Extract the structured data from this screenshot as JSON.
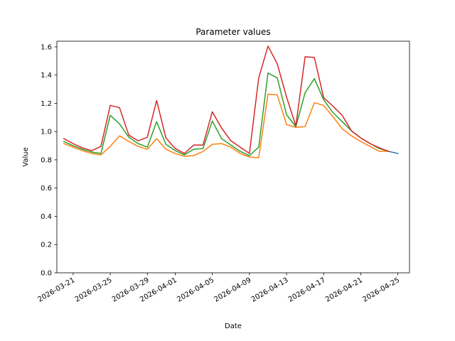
{
  "chart_data": {
    "type": "line",
    "title": "Parameter values",
    "xlabel": "Date",
    "ylabel": "Value",
    "ylim": [
      0.0,
      1.64
    ],
    "xlim": [
      "2026-03-19T06:00",
      "2026-04-26T06:00"
    ],
    "grid": false,
    "legend": "none",
    "x_ticks": [
      "2026-03-21",
      "2026-03-25",
      "2026-03-29",
      "2026-04-01",
      "2026-04-05",
      "2026-04-09",
      "2026-04-13",
      "2026-04-17",
      "2026-04-21",
      "2026-04-25"
    ],
    "y_ticks": [
      "0.0",
      "0.2",
      "0.4",
      "0.6",
      "0.8",
      "1.0",
      "1.2",
      "1.4",
      "1.6"
    ],
    "x": [
      "2026-03-20",
      "2026-03-21",
      "2026-03-22",
      "2026-03-23",
      "2026-03-24",
      "2026-03-25",
      "2026-03-26",
      "2026-03-27",
      "2026-03-28",
      "2026-03-29",
      "2026-03-30",
      "2026-03-31",
      "2026-04-01",
      "2026-04-02",
      "2026-04-03",
      "2026-04-04",
      "2026-04-05",
      "2026-04-06",
      "2026-04-07",
      "2026-04-08",
      "2026-04-09",
      "2026-04-10",
      "2026-04-11",
      "2026-04-12",
      "2026-04-13",
      "2026-04-14",
      "2026-04-15",
      "2026-04-16",
      "2026-04-17",
      "2026-04-18",
      "2026-04-19",
      "2026-04-20",
      "2026-04-21",
      "2026-04-22",
      "2026-04-23",
      "2026-04-24",
      "2026-04-25"
    ],
    "series": [
      {
        "color": "#1f77b4",
        "values": [
          null,
          null,
          null,
          null,
          null,
          null,
          null,
          null,
          null,
          null,
          null,
          null,
          null,
          null,
          null,
          null,
          null,
          null,
          null,
          null,
          null,
          null,
          null,
          null,
          null,
          null,
          null,
          null,
          null,
          null,
          null,
          null,
          null,
          null,
          null,
          0.86,
          0.845
        ]
      },
      {
        "color": "#ff7f0e",
        "values": [
          0.915,
          0.89,
          0.865,
          0.845,
          0.835,
          0.895,
          0.97,
          0.93,
          0.895,
          0.875,
          0.95,
          0.875,
          0.845,
          0.825,
          0.83,
          0.86,
          0.91,
          0.915,
          0.89,
          0.845,
          0.82,
          0.815,
          1.265,
          1.26,
          1.05,
          1.03,
          1.035,
          1.205,
          1.185,
          1.105,
          1.02,
          0.97,
          0.93,
          0.895,
          0.86,
          0.86,
          null
        ]
      },
      {
        "color": "#2ca02c",
        "values": [
          0.93,
          0.9,
          0.875,
          0.855,
          0.845,
          1.115,
          1.055,
          0.96,
          0.915,
          0.89,
          1.07,
          0.91,
          0.865,
          0.835,
          0.875,
          0.88,
          1.075,
          0.95,
          0.905,
          0.86,
          0.83,
          0.89,
          1.415,
          1.38,
          1.12,
          1.035,
          1.275,
          1.375,
          1.225,
          1.135,
          1.07,
          1.005,
          0.955,
          0.915,
          0.88,
          0.86,
          null
        ]
      },
      {
        "color": "#d62728",
        "values": [
          0.95,
          0.915,
          0.885,
          0.865,
          0.895,
          1.185,
          1.17,
          0.975,
          0.935,
          0.96,
          1.22,
          0.955,
          0.88,
          0.845,
          0.905,
          0.905,
          1.14,
          1.025,
          0.935,
          0.89,
          0.845,
          1.38,
          1.605,
          1.48,
          1.245,
          1.04,
          1.53,
          1.525,
          1.24,
          1.18,
          1.115,
          1.005,
          0.955,
          0.915,
          0.885,
          0.86,
          null
        ]
      }
    ]
  }
}
